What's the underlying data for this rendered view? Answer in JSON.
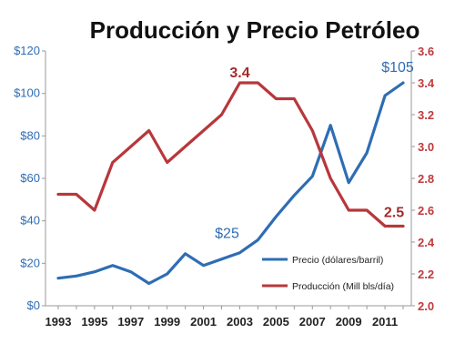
{
  "chart_data": {
    "type": "line",
    "title": "Producción y Precio Petróleo",
    "x": [
      1993,
      1994,
      1995,
      1996,
      1997,
      1998,
      1999,
      2000,
      2001,
      2002,
      2003,
      2004,
      2005,
      2006,
      2007,
      2008,
      2009,
      2010,
      2011,
      2012
    ],
    "x_ticks": [
      "1993",
      "1995",
      "1997",
      "1999",
      "2001",
      "2003",
      "2005",
      "2007",
      "2009",
      "2011"
    ],
    "x_tick_values": [
      1993,
      1995,
      1997,
      1999,
      2001,
      2003,
      2005,
      2007,
      2009,
      2011
    ],
    "y_left": {
      "ticks": [
        "$0",
        "$20",
        "$40",
        "$60",
        "$80",
        "$100",
        "$120"
      ],
      "tick_values": [
        0,
        20,
        40,
        60,
        80,
        100,
        120
      ],
      "range": [
        0,
        120
      ],
      "color": "#2e6db4"
    },
    "y_right": {
      "ticks": [
        "2.0",
        "2.2",
        "2.4",
        "2.6",
        "2.8",
        "3.0",
        "3.2",
        "3.4",
        "3.6"
      ],
      "tick_values": [
        2.0,
        2.2,
        2.4,
        2.6,
        2.8,
        3.0,
        3.2,
        3.4,
        3.6
      ],
      "range": [
        2.0,
        3.6
      ],
      "color": "#c0393b"
    },
    "series": [
      {
        "name": "Precio (dólares/barril)",
        "axis": "left",
        "color": "#2e6db4",
        "values": [
          13,
          14,
          16,
          19,
          16,
          10.5,
          15,
          24.5,
          19,
          22,
          25,
          31,
          42,
          52,
          61,
          85,
          58,
          72,
          99,
          105
        ]
      },
      {
        "name": "Producción (Mill bls/día)",
        "axis": "right",
        "color": "#b8373b",
        "values": [
          2.7,
          2.7,
          2.6,
          2.9,
          3.0,
          3.1,
          2.9,
          3.0,
          3.1,
          3.2,
          3.4,
          3.4,
          3.3,
          3.3,
          3.1,
          2.8,
          2.6,
          2.6,
          2.5,
          2.5
        ]
      }
    ],
    "annotations": [
      {
        "text": "$105",
        "axis": "left",
        "color": "#2e6db4"
      },
      {
        "text": "$25",
        "axis": "left",
        "color": "#2e6db4"
      },
      {
        "text": "3.4",
        "axis": "right",
        "color": "#a52a2a"
      },
      {
        "text": "2.5",
        "axis": "right",
        "color": "#a52a2a"
      }
    ],
    "grid": false,
    "legend": "bottom-right"
  }
}
